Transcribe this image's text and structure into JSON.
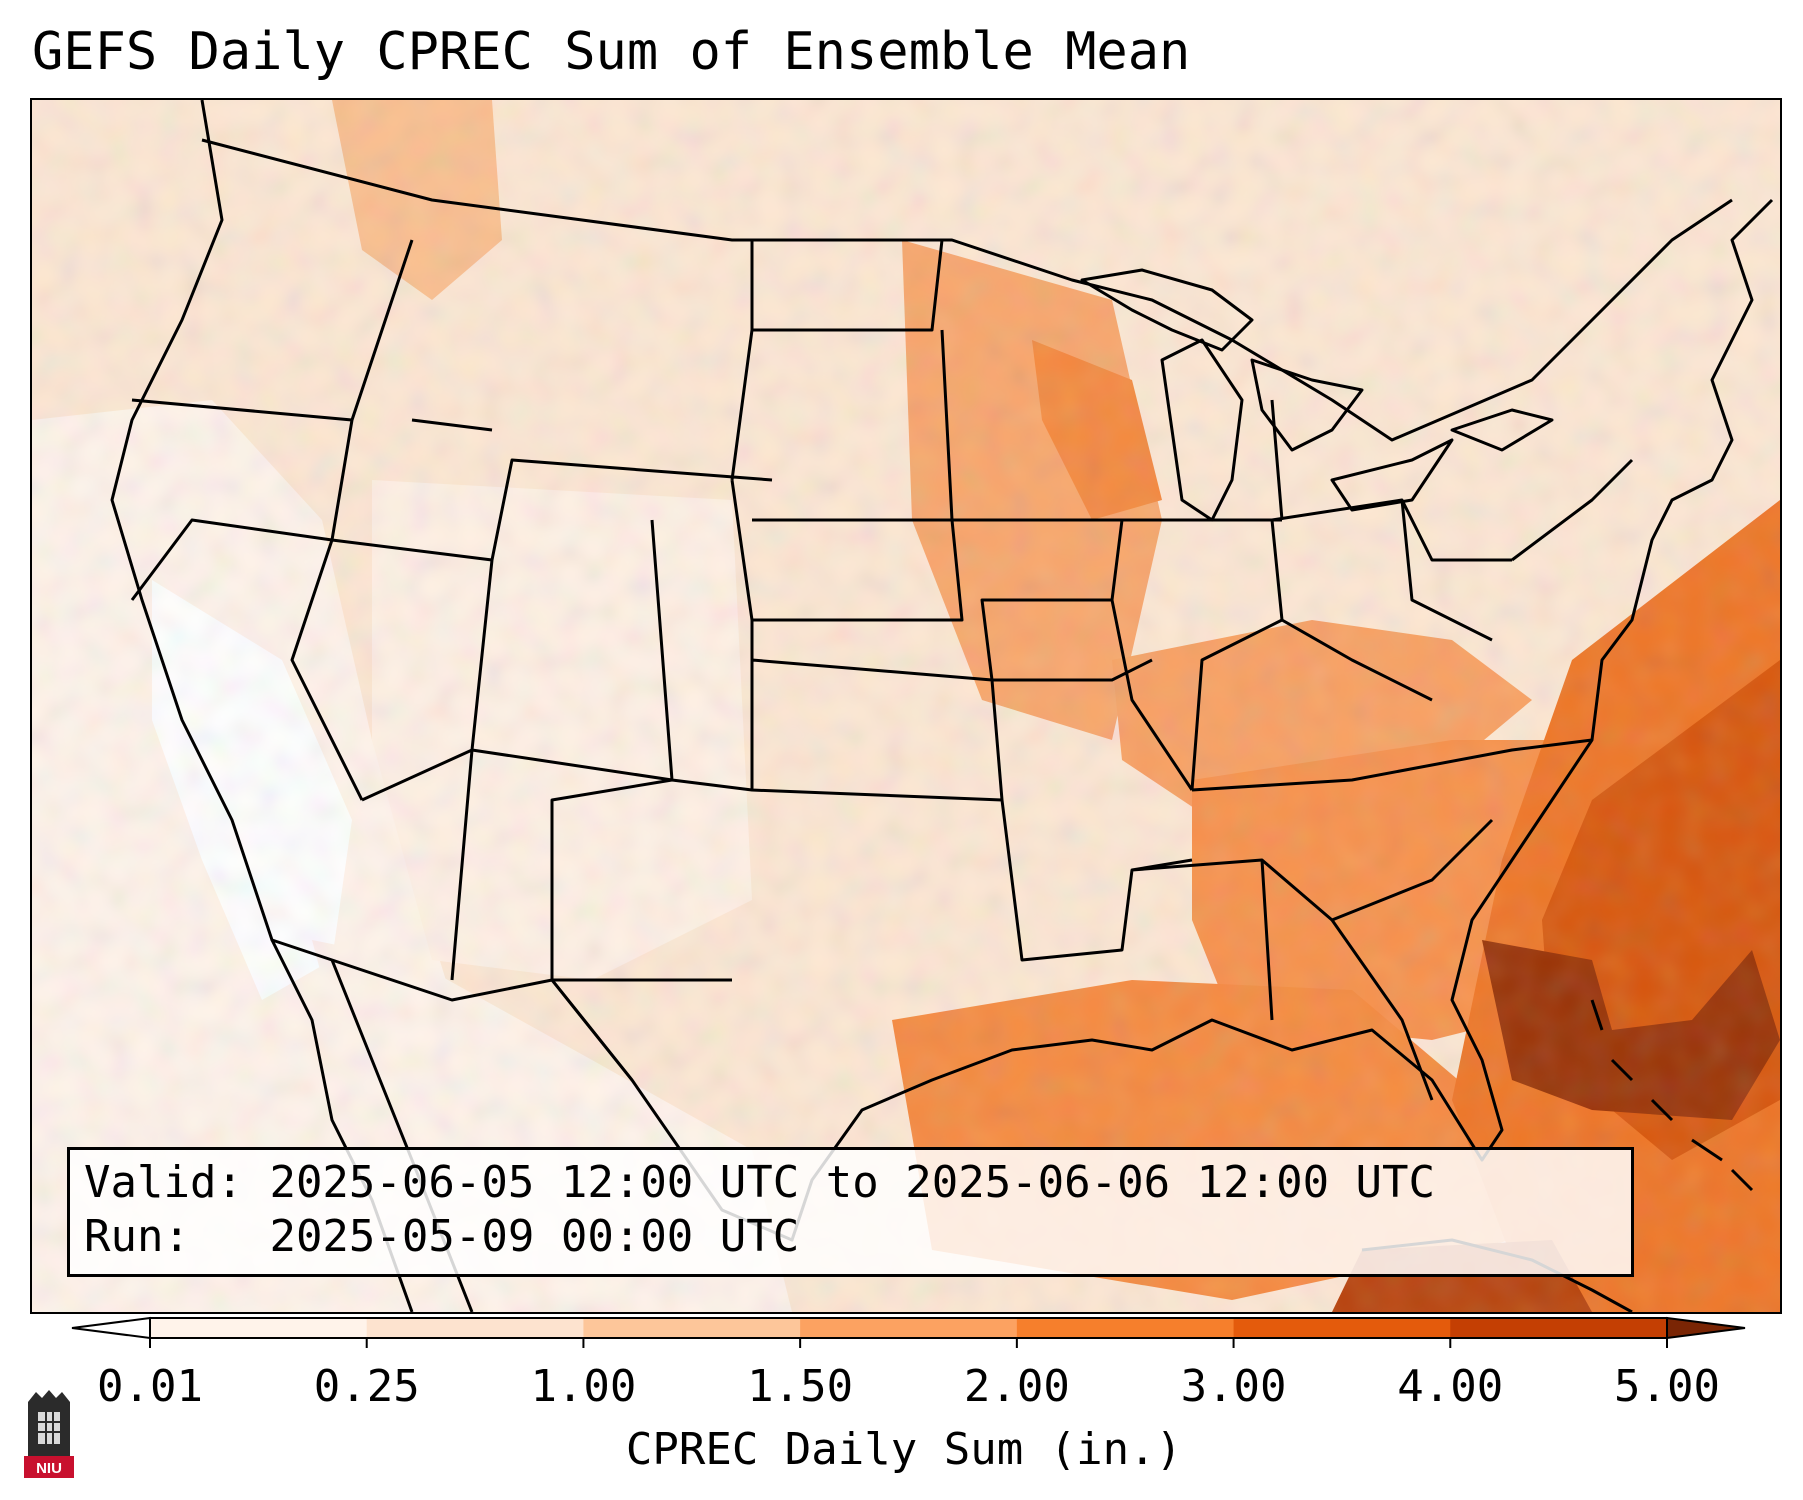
{
  "title": "GEFS Daily CPREC Sum of Ensemble Mean",
  "info": {
    "valid_label": "Valid:",
    "valid_value": "2025-06-05 12:00 UTC to 2025-06-06 12:00 UTC",
    "run_label": "Run:",
    "run_value": "2025-05-09 00:00 UTC"
  },
  "colorbar": {
    "label": "CPREC Daily Sum (in.)",
    "ticks": [
      "0.01",
      "0.25",
      "1.00",
      "1.50",
      "2.00",
      "3.00",
      "4.00",
      "5.00"
    ],
    "colors": [
      "#fff3ea",
      "#fde3cf",
      "#fdc69a",
      "#fca261",
      "#f67f2c",
      "#e45b0c",
      "#c43f03",
      "#8a2a04"
    ],
    "under_color": "#ffffff",
    "over_color": "#7a2504"
  },
  "logo": {
    "text": "NIU",
    "color": "#c8102e"
  },
  "map_layers": {
    "base_color": "#fde7d3",
    "regions": [
      {
        "name": "west-coast-dry",
        "color": "#fff3ea"
      },
      {
        "name": "california-nevada-none",
        "color": "#ffffff"
      },
      {
        "name": "baja-dry",
        "color": "#fff3ea"
      },
      {
        "name": "great-basin-light",
        "color": "#fff0e4"
      },
      {
        "name": "montana-wet",
        "color": "#fbbf8f"
      },
      {
        "name": "upper-midwest-wet",
        "color": "#f9a66b"
      },
      {
        "name": "wisconsin-core",
        "color": "#f5883d"
      },
      {
        "name": "ohio-tennessee-valley",
        "color": "#f9a062"
      },
      {
        "name": "southeast-wet",
        "color": "#f8914b"
      },
      {
        "name": "gulf-wet",
        "color": "#f68a3f"
      },
      {
        "name": "atlantic-heavy",
        "color": "#ef7525"
      },
      {
        "name": "atlantic-core",
        "color": "#d8560b"
      },
      {
        "name": "bahamas-max",
        "color": "#9a3204"
      },
      {
        "name": "cuba-heavy",
        "color": "#b8420a"
      }
    ]
  }
}
